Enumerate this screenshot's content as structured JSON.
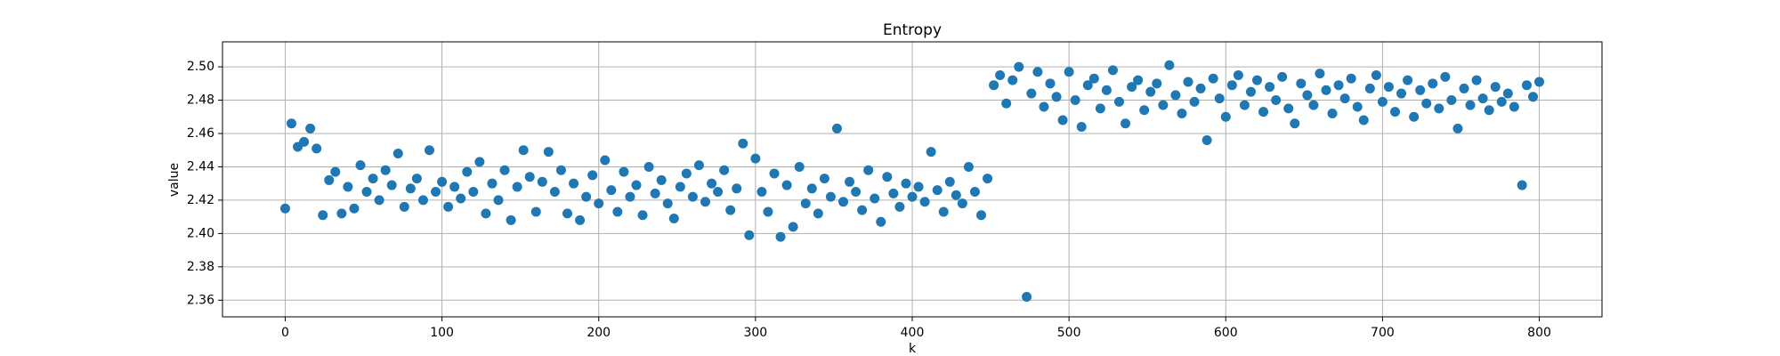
{
  "chart_data": {
    "type": "scatter",
    "title": "Entropy",
    "xlabel": "k",
    "ylabel": "value",
    "color": "#1f77b4",
    "grid": true,
    "xlim": [
      -40,
      840
    ],
    "ylim": [
      2.35,
      2.515
    ],
    "xticks": [
      0,
      100,
      200,
      300,
      400,
      500,
      600,
      700,
      800
    ],
    "yticks": [
      2.36,
      2.38,
      {
        "value": 2.4,
        "label": "2.40"
      },
      2.42,
      2.44,
      2.46,
      2.48,
      {
        "value": 2.5,
        "label": "2.50"
      }
    ],
    "x": [
      0,
      4,
      8,
      12,
      16,
      20,
      24,
      28,
      32,
      36,
      40,
      44,
      48,
      52,
      56,
      60,
      64,
      68,
      72,
      76,
      80,
      84,
      88,
      92,
      96,
      100,
      104,
      108,
      112,
      116,
      120,
      124,
      128,
      132,
      136,
      140,
      144,
      148,
      152,
      156,
      160,
      164,
      168,
      172,
      176,
      180,
      184,
      188,
      192,
      196,
      200,
      204,
      208,
      212,
      216,
      220,
      224,
      228,
      232,
      236,
      240,
      244,
      248,
      252,
      256,
      260,
      264,
      268,
      272,
      276,
      280,
      284,
      288,
      292,
      296,
      300,
      304,
      308,
      312,
      316,
      320,
      324,
      328,
      332,
      336,
      340,
      344,
      348,
      352,
      356,
      360,
      364,
      368,
      372,
      376,
      380,
      384,
      388,
      392,
      396,
      400,
      404,
      408,
      412,
      416,
      420,
      424,
      428,
      432,
      436,
      440,
      444,
      448,
      452,
      456,
      460,
      464,
      468,
      473,
      476,
      480,
      484,
      488,
      492,
      496,
      500,
      504,
      508,
      512,
      516,
      520,
      524,
      528,
      532,
      536,
      540,
      544,
      548,
      552,
      556,
      560,
      564,
      568,
      572,
      576,
      580,
      584,
      588,
      592,
      596,
      600,
      604,
      608,
      612,
      616,
      620,
      624,
      628,
      632,
      636,
      640,
      644,
      648,
      652,
      656,
      660,
      664,
      668,
      672,
      676,
      680,
      684,
      688,
      692,
      696,
      700,
      704,
      708,
      712,
      716,
      720,
      724,
      728,
      732,
      736,
      740,
      744,
      748,
      752,
      756,
      760,
      764,
      768,
      772,
      776,
      780,
      784,
      789,
      792,
      796,
      800
    ],
    "y": [
      2.415,
      2.466,
      2.452,
      2.455,
      2.463,
      2.451,
      2.411,
      2.432,
      2.437,
      2.412,
      2.428,
      2.415,
      2.441,
      2.425,
      2.433,
      2.42,
      2.438,
      2.429,
      2.448,
      2.416,
      2.427,
      2.433,
      2.42,
      2.45,
      2.425,
      2.431,
      2.416,
      2.428,
      2.421,
      2.437,
      2.425,
      2.443,
      2.412,
      2.43,
      2.42,
      2.438,
      2.408,
      2.428,
      2.45,
      2.434,
      2.413,
      2.431,
      2.449,
      2.425,
      2.438,
      2.412,
      2.43,
      2.408,
      2.422,
      2.435,
      2.418,
      2.444,
      2.426,
      2.413,
      2.437,
      2.422,
      2.429,
      2.411,
      2.44,
      2.424,
      2.432,
      2.418,
      2.409,
      2.428,
      2.436,
      2.422,
      2.441,
      2.419,
      2.43,
      2.425,
      2.438,
      2.414,
      2.427,
      2.454,
      2.399,
      2.445,
      2.425,
      2.413,
      2.436,
      2.398,
      2.429,
      2.404,
      2.44,
      2.418,
      2.427,
      2.412,
      2.433,
      2.422,
      2.463,
      2.419,
      2.431,
      2.425,
      2.414,
      2.438,
      2.421,
      2.407,
      2.434,
      2.424,
      2.416,
      2.43,
      2.422,
      2.428,
      2.419,
      2.449,
      2.426,
      2.413,
      2.431,
      2.423,
      2.418,
      2.44,
      2.425,
      2.411,
      2.433,
      2.489,
      2.495,
      2.478,
      2.492,
      2.5,
      2.362,
      2.484,
      2.497,
      2.476,
      2.49,
      2.482,
      2.468,
      2.497,
      2.48,
      2.464,
      2.489,
      2.493,
      2.475,
      2.486,
      2.498,
      2.479,
      2.466,
      2.488,
      2.492,
      2.474,
      2.485,
      2.49,
      2.477,
      2.501,
      2.483,
      2.472,
      2.491,
      2.479,
      2.487,
      2.456,
      2.493,
      2.481,
      2.47,
      2.489,
      2.495,
      2.477,
      2.485,
      2.492,
      2.473,
      2.488,
      2.48,
      2.494,
      2.475,
      2.466,
      2.49,
      2.483,
      2.477,
      2.496,
      2.486,
      2.472,
      2.489,
      2.481,
      2.493,
      2.476,
      2.468,
      2.487,
      2.495,
      2.479,
      2.488,
      2.473,
      2.484,
      2.492,
      2.47,
      2.486,
      2.478,
      2.49,
      2.475,
      2.494,
      2.48,
      2.463,
      2.487,
      2.477,
      2.492,
      2.481,
      2.474,
      2.488,
      2.479,
      2.484,
      2.476,
      2.429,
      2.489,
      2.482,
      2.491
    ]
  }
}
